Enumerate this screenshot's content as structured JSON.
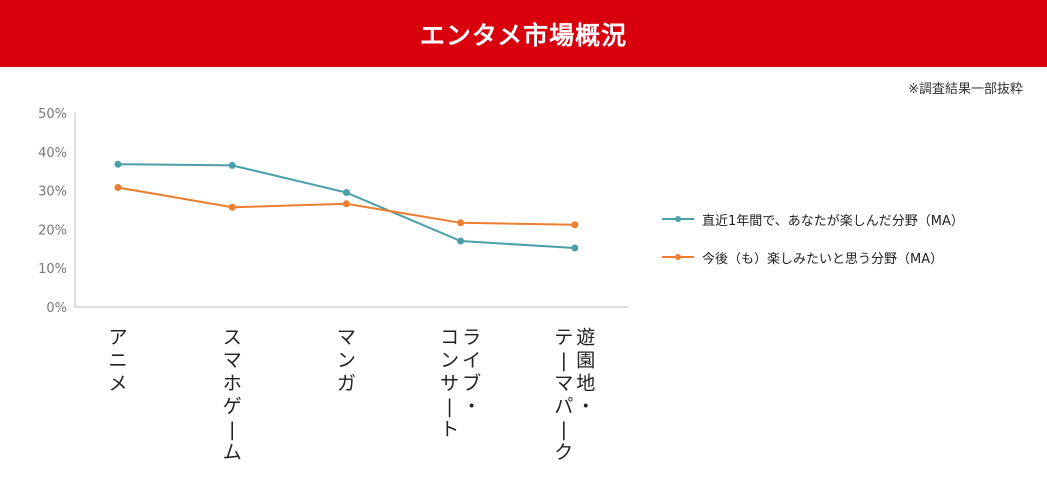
{
  "header": {
    "title": "エンタメ市場概況"
  },
  "note": "※調査結果一部抜粋",
  "colors": {
    "header_bg": "#d9000d",
    "series1": "#4a9fa8",
    "series2": "#ed7d31",
    "axis": "#bbbbbb"
  },
  "chart_data": {
    "type": "line",
    "categories": [
      "アニメ",
      "スマホゲーム",
      "マンガ",
      "ライブ・コンサート",
      "遊園地・テーマパーク"
    ],
    "category_lines": [
      [
        "アニメ"
      ],
      [
        "スマホゲーム"
      ],
      [
        "マンガ"
      ],
      [
        "ライブ・",
        "コンサート"
      ],
      [
        "遊園地・",
        "テーマパーク"
      ]
    ],
    "series": [
      {
        "name": "直近1年間で、あなたが楽しんだ分野（MA）",
        "values": [
          36.8,
          36.5,
          29.5,
          17.0,
          15.2
        ]
      },
      {
        "name": "今後（も）楽しみたいと思う分野（MA）",
        "values": [
          30.8,
          25.7,
          26.6,
          21.7,
          21.2
        ]
      }
    ],
    "ylim": [
      0,
      50
    ],
    "yticks": [
      "0%",
      "10%",
      "20%",
      "30%",
      "40%",
      "50%"
    ],
    "legend_position": "right"
  }
}
